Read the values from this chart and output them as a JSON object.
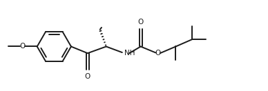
{
  "bg_color": "#ffffff",
  "line_color": "#1a1a1a",
  "lw": 1.4,
  "fig_width": 3.88,
  "fig_height": 1.32,
  "dpi": 100,
  "xlim": [
    0.0,
    5.2
  ],
  "ylim": [
    0.05,
    1.55
  ]
}
